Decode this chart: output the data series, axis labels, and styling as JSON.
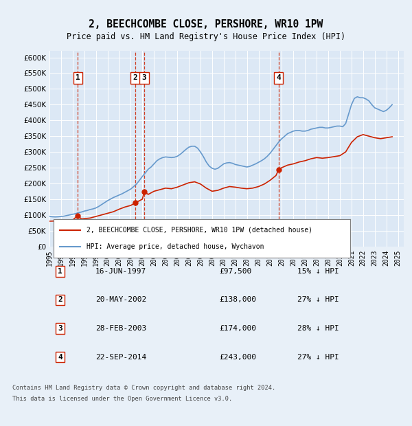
{
  "title": "2, BEECHCOMBE CLOSE, PERSHORE, WR10 1PW",
  "subtitle": "Price paid vs. HM Land Registry's House Price Index (HPI)",
  "background_color": "#e8f0f8",
  "plot_bg_color": "#dce8f5",
  "ylim": [
    0,
    620000
  ],
  "yticks": [
    0,
    50000,
    100000,
    150000,
    200000,
    250000,
    300000,
    350000,
    400000,
    450000,
    500000,
    550000,
    600000
  ],
  "xlim_start": 1995.0,
  "xlim_end": 2025.5,
  "transactions": [
    {
      "num": 1,
      "date": "16-JUN-1997",
      "price": 97500,
      "pct": "15%",
      "x": 1997.45
    },
    {
      "num": 2,
      "date": "20-MAY-2002",
      "price": 138000,
      "pct": "27%",
      "x": 2002.38
    },
    {
      "num": 3,
      "date": "28-FEB-2003",
      "price": 174000,
      "pct": "28%",
      "x": 2003.16
    },
    {
      "num": 4,
      "date": "22-SEP-2014",
      "price": 243000,
      "pct": "27%",
      "x": 2014.72
    }
  ],
  "hpi_color": "#6699cc",
  "price_color": "#cc2200",
  "dashed_color": "#cc2200",
  "legend_label_price": "2, BEECHCOMBE CLOSE, PERSHORE, WR10 1PW (detached house)",
  "legend_label_hpi": "HPI: Average price, detached house, Wychavon",
  "footer1": "Contains HM Land Registry data © Crown copyright and database right 2024.",
  "footer2": "This data is licensed under the Open Government Licence v3.0.",
  "hpi_data_x": [
    1995.0,
    1995.25,
    1995.5,
    1995.75,
    1996.0,
    1996.25,
    1996.5,
    1996.75,
    1997.0,
    1997.25,
    1997.5,
    1997.75,
    1998.0,
    1998.25,
    1998.5,
    1998.75,
    1999.0,
    1999.25,
    1999.5,
    1999.75,
    2000.0,
    2000.25,
    2000.5,
    2000.75,
    2001.0,
    2001.25,
    2001.5,
    2001.75,
    2002.0,
    2002.25,
    2002.5,
    2002.75,
    2003.0,
    2003.25,
    2003.5,
    2003.75,
    2004.0,
    2004.25,
    2004.5,
    2004.75,
    2005.0,
    2005.25,
    2005.5,
    2005.75,
    2006.0,
    2006.25,
    2006.5,
    2006.75,
    2007.0,
    2007.25,
    2007.5,
    2007.75,
    2008.0,
    2008.25,
    2008.5,
    2008.75,
    2009.0,
    2009.25,
    2009.5,
    2009.75,
    2010.0,
    2010.25,
    2010.5,
    2010.75,
    2011.0,
    2011.25,
    2011.5,
    2011.75,
    2012.0,
    2012.25,
    2012.5,
    2012.75,
    2013.0,
    2013.25,
    2013.5,
    2013.75,
    2014.0,
    2014.25,
    2014.5,
    2014.75,
    2015.0,
    2015.25,
    2015.5,
    2015.75,
    2016.0,
    2016.25,
    2016.5,
    2016.75,
    2017.0,
    2017.25,
    2017.5,
    2017.75,
    2018.0,
    2018.25,
    2018.5,
    2018.75,
    2019.0,
    2019.25,
    2019.5,
    2019.75,
    2020.0,
    2020.25,
    2020.5,
    2020.75,
    2021.0,
    2021.25,
    2021.5,
    2021.75,
    2022.0,
    2022.25,
    2022.5,
    2022.75,
    2023.0,
    2023.25,
    2023.5,
    2023.75,
    2024.0,
    2024.25,
    2024.5
  ],
  "hpi_data_y": [
    95000,
    94000,
    93500,
    94000,
    95000,
    96000,
    98000,
    100000,
    102000,
    104000,
    107000,
    109000,
    112000,
    114000,
    117000,
    119000,
    122000,
    127000,
    133000,
    139000,
    145000,
    150000,
    155000,
    159000,
    163000,
    167000,
    172000,
    177000,
    182000,
    190000,
    198000,
    210000,
    222000,
    233000,
    245000,
    252000,
    262000,
    272000,
    278000,
    282000,
    284000,
    283000,
    282000,
    283000,
    286000,
    292000,
    300000,
    308000,
    315000,
    318000,
    318000,
    312000,
    300000,
    285000,
    268000,
    255000,
    248000,
    245000,
    248000,
    255000,
    262000,
    265000,
    266000,
    264000,
    260000,
    258000,
    256000,
    254000,
    252000,
    254000,
    258000,
    262000,
    267000,
    272000,
    278000,
    286000,
    296000,
    308000,
    320000,
    332000,
    342000,
    350000,
    358000,
    362000,
    366000,
    368000,
    368000,
    366000,
    366000,
    368000,
    372000,
    374000,
    376000,
    378000,
    378000,
    376000,
    376000,
    378000,
    380000,
    382000,
    382000,
    380000,
    390000,
    420000,
    450000,
    470000,
    475000,
    472000,
    472000,
    468000,
    462000,
    450000,
    440000,
    436000,
    432000,
    428000,
    432000,
    440000,
    450000
  ],
  "price_data_x": [
    1995.0,
    1995.5,
    1996.0,
    1996.5,
    1997.0,
    1997.45,
    1997.75,
    1998.0,
    1998.5,
    1999.0,
    1999.5,
    2000.0,
    2000.5,
    2001.0,
    2001.5,
    2002.0,
    2002.38,
    2002.75,
    2003.0,
    2003.16,
    2003.5,
    2004.0,
    2004.5,
    2005.0,
    2005.5,
    2006.0,
    2006.5,
    2007.0,
    2007.5,
    2008.0,
    2008.5,
    2009.0,
    2009.5,
    2010.0,
    2010.5,
    2011.0,
    2011.5,
    2012.0,
    2012.5,
    2013.0,
    2013.5,
    2014.0,
    2014.5,
    2014.72,
    2015.0,
    2015.5,
    2016.0,
    2016.5,
    2017.0,
    2017.5,
    2018.0,
    2018.5,
    2019.0,
    2019.5,
    2020.0,
    2020.5,
    2021.0,
    2021.5,
    2022.0,
    2022.5,
    2023.0,
    2023.5,
    2024.0,
    2024.5
  ],
  "price_data_y": [
    80000,
    80500,
    81000,
    82000,
    84000,
    97500,
    87000,
    88000,
    90000,
    95000,
    100000,
    105000,
    110000,
    118000,
    125000,
    130000,
    138000,
    145000,
    150000,
    174000,
    165000,
    175000,
    180000,
    185000,
    183000,
    188000,
    195000,
    202000,
    205000,
    198000,
    185000,
    175000,
    178000,
    185000,
    190000,
    188000,
    185000,
    183000,
    185000,
    190000,
    198000,
    210000,
    225000,
    243000,
    250000,
    258000,
    262000,
    268000,
    272000,
    278000,
    282000,
    280000,
    282000,
    285000,
    288000,
    300000,
    330000,
    348000,
    355000,
    350000,
    345000,
    342000,
    345000,
    348000
  ]
}
